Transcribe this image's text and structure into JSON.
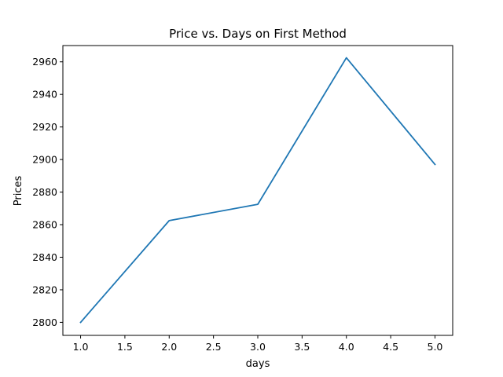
{
  "chart_data": {
    "type": "line",
    "title": "Price vs. Days on First Method",
    "xlabel": "days",
    "ylabel": "Prices",
    "xlim": [
      0.8,
      5.2
    ],
    "ylim": [
      2792,
      2970
    ],
    "xticks": [
      1.0,
      1.5,
      2.0,
      2.5,
      3.0,
      3.5,
      4.0,
      4.5,
      5.0
    ],
    "xtick_labels": [
      "1.0",
      "1.5",
      "2.0",
      "2.5",
      "3.0",
      "3.5",
      "4.0",
      "4.5",
      "5.0"
    ],
    "yticks": [
      2800,
      2820,
      2840,
      2860,
      2880,
      2900,
      2920,
      2940,
      2960
    ],
    "ytick_labels": [
      "2800",
      "2820",
      "2840",
      "2860",
      "2880",
      "2900",
      "2920",
      "2940",
      "2960"
    ],
    "grid": false,
    "legend": "none",
    "series": [
      {
        "color": "#1f77b4",
        "x": [
          1,
          2,
          3,
          4,
          5
        ],
        "y": [
          2800,
          2862.5,
          2872.5,
          2962.5,
          2897
        ]
      }
    ]
  }
}
